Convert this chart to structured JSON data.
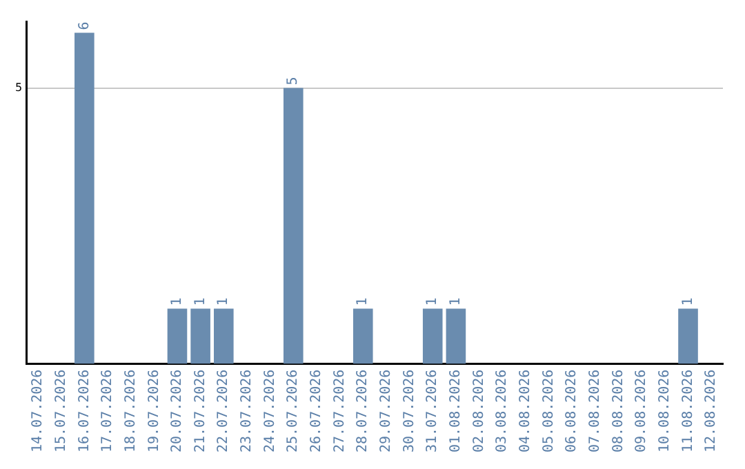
{
  "chart_data": {
    "type": "bar",
    "categories": [
      "14.07.2026",
      "15.07.2026",
      "16.07.2026",
      "17.07.2026",
      "18.07.2026",
      "19.07.2026",
      "20.07.2026",
      "21.07.2026",
      "22.07.2026",
      "23.07.2026",
      "24.07.2026",
      "25.07.2026",
      "26.07.2026",
      "27.07.2026",
      "28.07.2026",
      "29.07.2026",
      "30.07.2026",
      "31.07.2026",
      "01.08.2026",
      "02.08.2026",
      "03.08.2026",
      "04.08.2026",
      "05.08.2026",
      "06.08.2026",
      "07.08.2026",
      "08.08.2026",
      "09.08.2026",
      "10.08.2026",
      "11.08.2026",
      "12.08.2026"
    ],
    "values": [
      0,
      0,
      6,
      0,
      0,
      0,
      1,
      1,
      1,
      0,
      0,
      5,
      0,
      0,
      1,
      0,
      0,
      1,
      1,
      0,
      0,
      0,
      0,
      0,
      0,
      0,
      0,
      0,
      1,
      0
    ],
    "value_labels": [
      null,
      null,
      "6",
      null,
      null,
      null,
      "1",
      "1",
      "1",
      null,
      null,
      "5",
      null,
      null,
      "1",
      null,
      null,
      "1",
      "1",
      null,
      null,
      null,
      null,
      null,
      null,
      null,
      null,
      null,
      "1",
      null
    ],
    "color": "#6a8caf",
    "ylim": [
      0,
      6.2
    ],
    "yticks": [
      5
    ],
    "grid": "y",
    "legend": false
  }
}
